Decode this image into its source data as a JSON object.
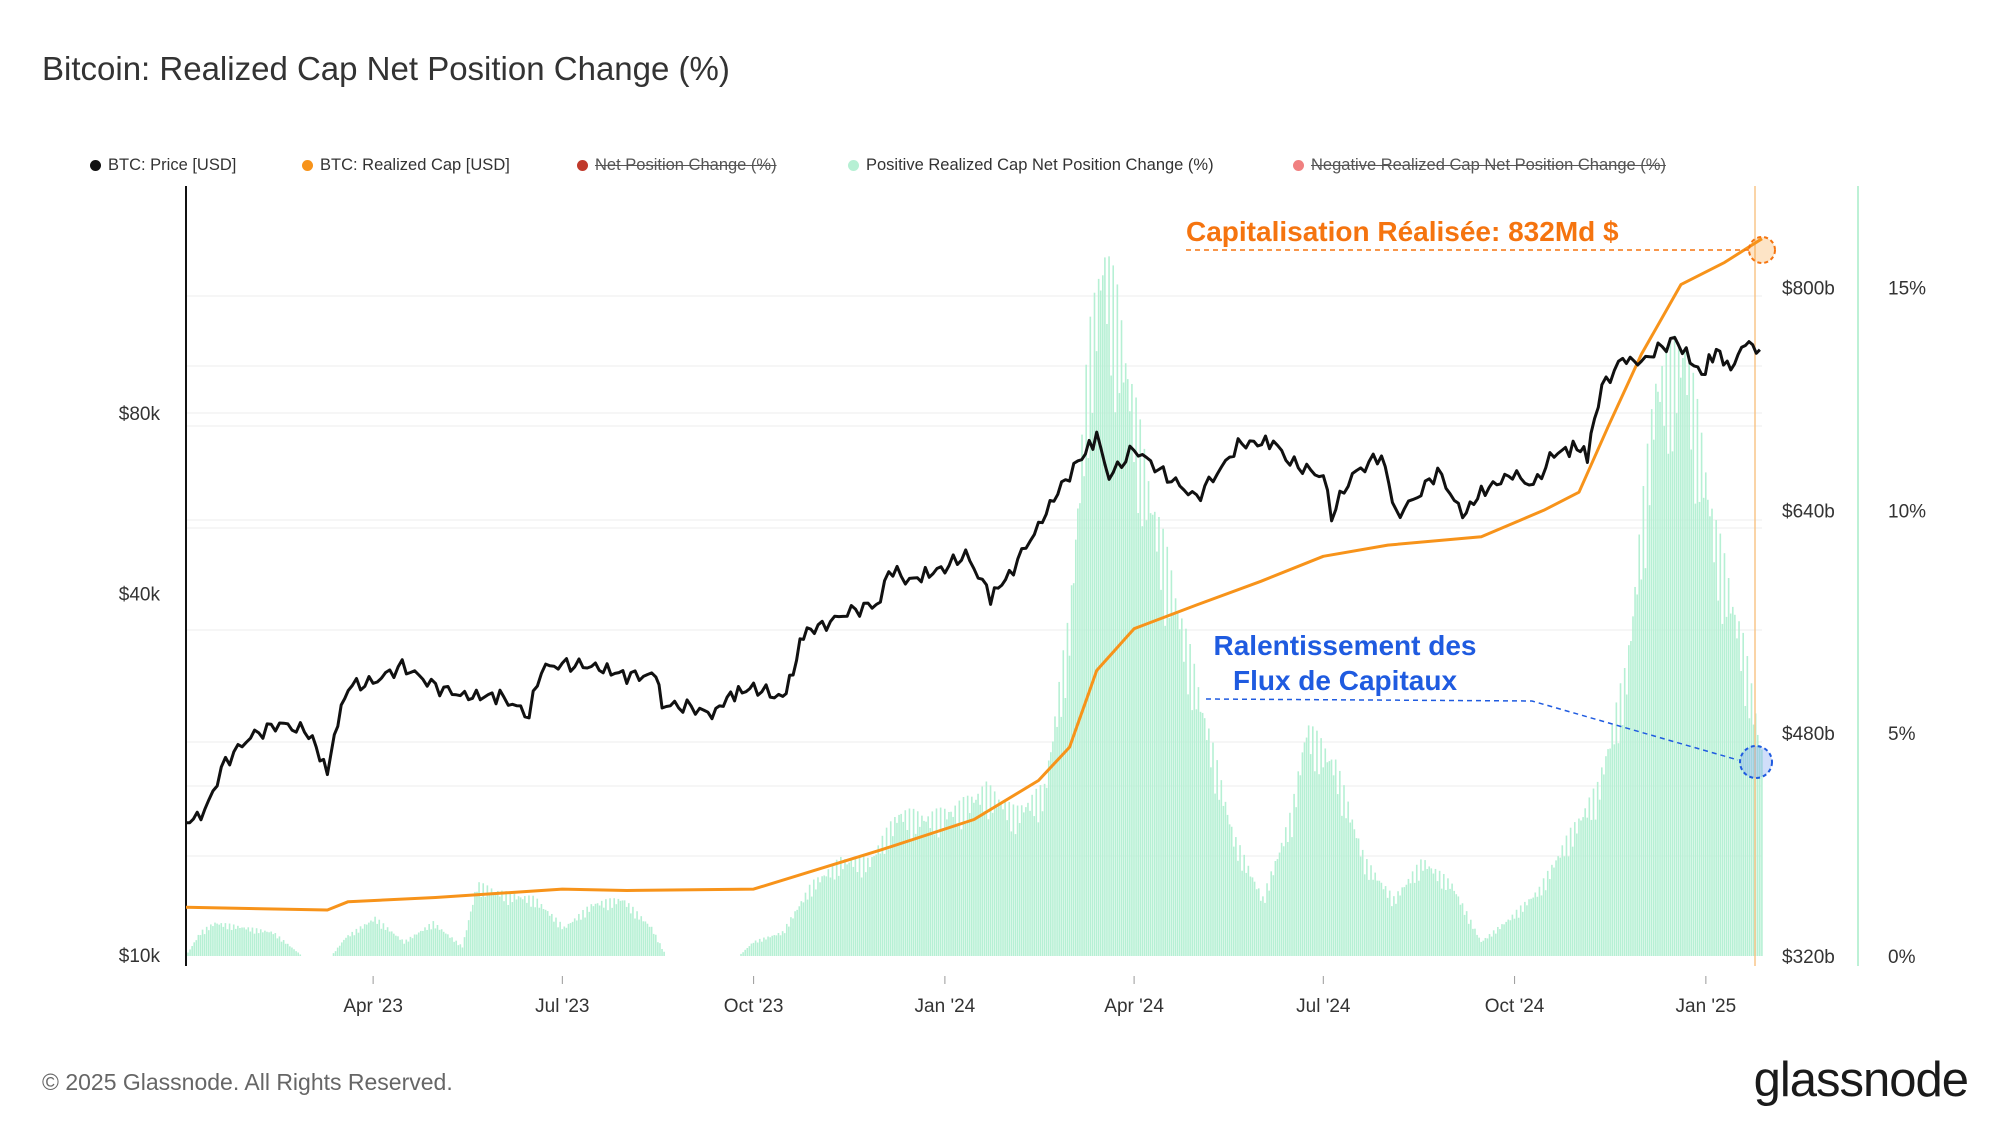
{
  "title": "Bitcoin: Realized Cap Net Position Change (%)",
  "legend": [
    {
      "label": "BTC: Price [USD]",
      "color": "#111111",
      "active": true
    },
    {
      "label": "BTC: Realized Cap [USD]",
      "color": "#f7931a",
      "active": true
    },
    {
      "label": "Net Position Change (%)",
      "color": "#c0392b",
      "active": false
    },
    {
      "label": "Positive Realized Cap Net Position Change (%)",
      "color": "#b6f0d4",
      "active": true
    },
    {
      "label": "Negative Realized Cap Net Position Change (%)",
      "color": "#f08080",
      "active": false
    }
  ],
  "footer": "© 2025 Glassnode. All Rights Reserved.",
  "brand": "glassnode",
  "annotations": {
    "realized_cap": "Capitalisation Réalisée: 832Md $",
    "slowdown_line1": "Ralentissement des",
    "slowdown_line2": "Flux de Capitaux"
  },
  "colors": {
    "price": "#111111",
    "realized_cap": "#f7931a",
    "bars": "#b6f0d4",
    "annotation_orange": "#f5740f",
    "annotation_blue": "#1f5be0"
  },
  "chart_data": {
    "type": "line",
    "x_range": [
      "2023-01-01",
      "2025-01-28"
    ],
    "x_ticks": [
      {
        "date": "2023-04-01",
        "label": "Apr '23"
      },
      {
        "date": "2023-07-01",
        "label": "Jul '23"
      },
      {
        "date": "2023-10-01",
        "label": "Oct '23"
      },
      {
        "date": "2024-01-01",
        "label": "Jan '24"
      },
      {
        "date": "2024-04-01",
        "label": "Apr '24"
      },
      {
        "date": "2024-07-01",
        "label": "Jul '24"
      },
      {
        "date": "2024-10-01",
        "label": "Oct '24"
      },
      {
        "date": "2025-01-01",
        "label": "Jan '25"
      }
    ],
    "price_axis": {
      "scale": "log",
      "ticks": [
        {
          "value": 10000,
          "label": "$10k"
        },
        {
          "value": 40000,
          "label": "$40k"
        },
        {
          "value": 80000,
          "label": "$80k"
        }
      ]
    },
    "cap_axis": {
      "range": [
        320,
        880
      ],
      "unit": "billion USD",
      "ticks": [
        {
          "value": 320,
          "label": "$320b"
        },
        {
          "value": 480,
          "label": "$480b"
        },
        {
          "value": 640,
          "label": "$640b"
        },
        {
          "value": 800,
          "label": "$800b"
        }
      ]
    },
    "pct_axis": {
      "range": [
        0,
        17.5
      ],
      "ticks": [
        {
          "value": 0,
          "label": "0%"
        },
        {
          "value": 5,
          "label": "5%"
        },
        {
          "value": 10,
          "label": "10%"
        },
        {
          "value": 15,
          "label": "15%"
        }
      ]
    },
    "series": [
      {
        "name": "BTC: Price [USD]",
        "axis": "price",
        "points": [
          [
            "2023-01-01",
            16600
          ],
          [
            "2023-01-10",
            17300
          ],
          [
            "2023-01-20",
            21000
          ],
          [
            "2023-02-01",
            23100
          ],
          [
            "2023-02-15",
            24300
          ],
          [
            "2023-03-01",
            23500
          ],
          [
            "2023-03-10",
            20100
          ],
          [
            "2023-03-15",
            24500
          ],
          [
            "2023-03-20",
            28000
          ],
          [
            "2023-04-01",
            28500
          ],
          [
            "2023-04-15",
            30300
          ],
          [
            "2023-05-01",
            28000
          ],
          [
            "2023-05-15",
            27000
          ],
          [
            "2023-06-01",
            27000
          ],
          [
            "2023-06-15",
            25100
          ],
          [
            "2023-06-21",
            30000
          ],
          [
            "2023-07-01",
            30500
          ],
          [
            "2023-07-15",
            30300
          ],
          [
            "2023-08-01",
            29200
          ],
          [
            "2023-08-15",
            29200
          ],
          [
            "2023-08-18",
            26100
          ],
          [
            "2023-09-01",
            25900
          ],
          [
            "2023-09-11",
            25100
          ],
          [
            "2023-09-20",
            27100
          ],
          [
            "2023-10-01",
            27900
          ],
          [
            "2023-10-15",
            26800
          ],
          [
            "2023-10-20",
            29600
          ],
          [
            "2023-10-25",
            34500
          ],
          [
            "2023-11-01",
            35000
          ],
          [
            "2023-11-15",
            37200
          ],
          [
            "2023-12-01",
            38700
          ],
          [
            "2023-12-05",
            44000
          ],
          [
            "2023-12-15",
            42000
          ],
          [
            "2024-01-01",
            44200
          ],
          [
            "2024-01-11",
            46500
          ],
          [
            "2024-01-23",
            39500
          ],
          [
            "2024-02-01",
            43000
          ],
          [
            "2024-02-15",
            51700
          ],
          [
            "2024-02-28",
            62000
          ],
          [
            "2024-03-05",
            66000
          ],
          [
            "2024-03-14",
            73100
          ],
          [
            "2024-03-20",
            62500
          ],
          [
            "2024-04-01",
            69700
          ],
          [
            "2024-04-15",
            63400
          ],
          [
            "2024-05-01",
            57700
          ],
          [
            "2024-05-15",
            66000
          ],
          [
            "2024-05-21",
            71000
          ],
          [
            "2024-06-07",
            71500
          ],
          [
            "2024-06-15",
            66200
          ],
          [
            "2024-07-01",
            62700
          ],
          [
            "2024-07-05",
            54000
          ],
          [
            "2024-07-15",
            63000
          ],
          [
            "2024-07-29",
            68200
          ],
          [
            "2024-08-05",
            54000
          ],
          [
            "2024-08-15",
            58000
          ],
          [
            "2024-08-25",
            64000
          ],
          [
            "2024-09-06",
            53900
          ],
          [
            "2024-09-15",
            59000
          ],
          [
            "2024-09-30",
            63300
          ],
          [
            "2024-10-10",
            60500
          ],
          [
            "2024-10-20",
            68400
          ],
          [
            "2024-10-31",
            70200
          ],
          [
            "2024-11-05",
            68000
          ],
          [
            "2024-11-12",
            88000
          ],
          [
            "2024-11-22",
            98500
          ],
          [
            "2024-12-01",
            97000
          ],
          [
            "2024-12-05",
            100000
          ],
          [
            "2024-12-17",
            106000
          ],
          [
            "2024-12-30",
            92500
          ],
          [
            "2025-01-06",
            101800
          ],
          [
            "2025-01-13",
            94500
          ],
          [
            "2025-01-20",
            105000
          ],
          [
            "2025-01-27",
            102000
          ]
        ]
      },
      {
        "name": "BTC: Realized Cap [USD]",
        "axis": "cap",
        "points": [
          [
            "2023-01-01",
            355
          ],
          [
            "2023-03-10",
            353
          ],
          [
            "2023-03-20",
            359
          ],
          [
            "2023-05-01",
            362
          ],
          [
            "2023-07-01",
            368
          ],
          [
            "2023-08-01",
            367
          ],
          [
            "2023-10-01",
            368
          ],
          [
            "2023-12-01",
            396
          ],
          [
            "2024-01-15",
            418
          ],
          [
            "2024-02-15",
            446
          ],
          [
            "2024-03-01",
            470
          ],
          [
            "2024-03-14",
            525
          ],
          [
            "2024-04-01",
            555
          ],
          [
            "2024-05-01",
            572
          ],
          [
            "2024-06-01",
            589
          ],
          [
            "2024-07-01",
            607
          ],
          [
            "2024-08-01",
            615
          ],
          [
            "2024-09-15",
            621
          ],
          [
            "2024-10-15",
            640
          ],
          [
            "2024-11-01",
            653
          ],
          [
            "2024-11-15",
            700
          ],
          [
            "2024-12-01",
            752
          ],
          [
            "2024-12-20",
            802
          ],
          [
            "2025-01-10",
            818
          ],
          [
            "2025-01-28",
            835
          ]
        ]
      },
      {
        "name": "Positive Realized Cap Net Position Change (%)",
        "axis": "pct",
        "type": "bar",
        "points": [
          [
            "2023-01-01",
            0.0
          ],
          [
            "2023-01-08",
            0.5
          ],
          [
            "2023-01-15",
            0.7
          ],
          [
            "2023-01-29",
            0.6
          ],
          [
            "2023-02-12",
            0.5
          ],
          [
            "2023-02-26",
            0.0
          ],
          [
            "2023-03-12",
            0.0
          ],
          [
            "2023-03-19",
            0.4
          ],
          [
            "2023-04-02",
            0.8
          ],
          [
            "2023-04-16",
            0.3
          ],
          [
            "2023-04-30",
            0.7
          ],
          [
            "2023-05-14",
            0.2
          ],
          [
            "2023-05-21",
            1.5
          ],
          [
            "2023-06-04",
            1.3
          ],
          [
            "2023-06-18",
            1.2
          ],
          [
            "2023-07-02",
            0.6
          ],
          [
            "2023-07-16",
            1.1
          ],
          [
            "2023-07-30",
            1.2
          ],
          [
            "2023-08-13",
            0.6
          ],
          [
            "2023-08-20",
            0.0
          ],
          [
            "2023-09-24",
            0.0
          ],
          [
            "2023-10-01",
            0.3
          ],
          [
            "2023-10-15",
            0.5
          ],
          [
            "2023-10-29",
            1.5
          ],
          [
            "2023-11-12",
            2.0
          ],
          [
            "2023-11-26",
            2.0
          ],
          [
            "2023-12-10",
            3.0
          ],
          [
            "2023-12-24",
            2.9
          ],
          [
            "2024-01-07",
            3.1
          ],
          [
            "2024-01-21",
            3.5
          ],
          [
            "2024-02-04",
            3.0
          ],
          [
            "2024-02-18",
            3.5
          ],
          [
            "2024-03-01",
            7.0
          ],
          [
            "2024-03-10",
            12.5
          ],
          [
            "2024-03-17",
            14.7
          ],
          [
            "2024-03-24",
            13.5
          ],
          [
            "2024-04-07",
            10.0
          ],
          [
            "2024-04-21",
            7.5
          ],
          [
            "2024-05-05",
            5.0
          ],
          [
            "2024-05-19",
            2.5
          ],
          [
            "2024-06-02",
            1.2
          ],
          [
            "2024-06-16",
            3.0
          ],
          [
            "2024-06-23",
            4.8
          ],
          [
            "2024-07-07",
            4.0
          ],
          [
            "2024-07-21",
            2.0
          ],
          [
            "2024-08-04",
            1.2
          ],
          [
            "2024-08-18",
            2.0
          ],
          [
            "2024-09-01",
            1.5
          ],
          [
            "2024-09-15",
            0.3
          ],
          [
            "2024-09-29",
            0.8
          ],
          [
            "2024-10-13",
            1.4
          ],
          [
            "2024-10-27",
            2.5
          ],
          [
            "2024-11-10",
            3.5
          ],
          [
            "2024-11-24",
            6.0
          ],
          [
            "2024-12-08",
            12.0
          ],
          [
            "2024-12-22",
            12.8
          ],
          [
            "2025-01-05",
            9.0
          ],
          [
            "2025-01-19",
            6.5
          ],
          [
            "2025-01-28",
            4.3
          ]
        ]
      }
    ]
  }
}
